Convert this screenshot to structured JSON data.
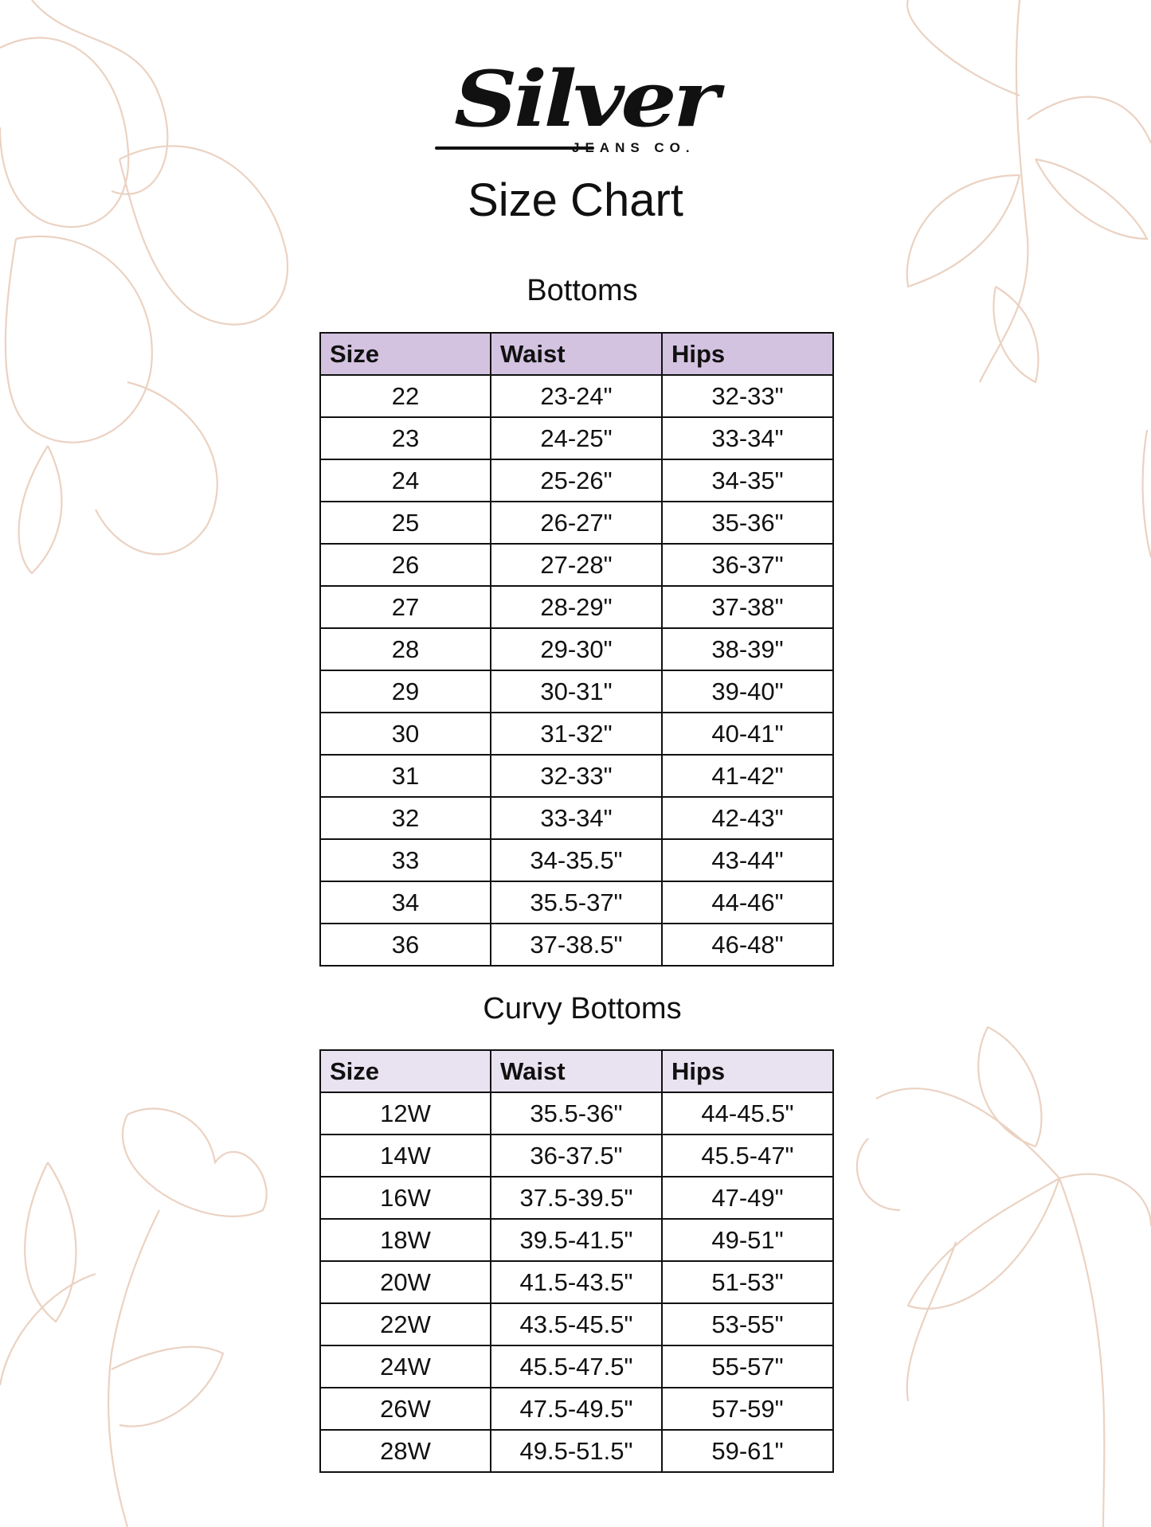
{
  "brand": {
    "logo_script": "Silver",
    "logo_sub": "JEANS CO."
  },
  "title": "Size Chart",
  "colors": {
    "header_bottoms": "#d3c3e0",
    "header_curvy": "#e9e2f0",
    "floral": "#ebd2c2"
  },
  "bottoms": {
    "heading": "Bottoms",
    "columns": [
      "Size",
      "Waist",
      "Hips"
    ],
    "rows": [
      [
        "22",
        "23-24\"",
        "32-33\""
      ],
      [
        "23",
        "24-25\"",
        "33-34\""
      ],
      [
        "24",
        "25-26\"",
        "34-35\""
      ],
      [
        "25",
        "26-27\"",
        "35-36\""
      ],
      [
        "26",
        "27-28\"",
        "36-37\""
      ],
      [
        "27",
        "28-29\"",
        "37-38\""
      ],
      [
        "28",
        "29-30\"",
        "38-39\""
      ],
      [
        "29",
        "30-31\"",
        "39-40\""
      ],
      [
        "30",
        "31-32\"",
        "40-41\""
      ],
      [
        "31",
        "32-33\"",
        "41-42\""
      ],
      [
        "32",
        "33-34\"",
        "42-43\""
      ],
      [
        "33",
        "34-35.5\"",
        "43-44\""
      ],
      [
        "34",
        "35.5-37\"",
        "44-46\""
      ],
      [
        "36",
        "37-38.5\"",
        "46-48\""
      ]
    ]
  },
  "curvy": {
    "heading": "Curvy Bottoms",
    "columns": [
      "Size",
      "Waist",
      "Hips"
    ],
    "rows": [
      [
        "12W",
        "35.5-36\"",
        "44-45.5\""
      ],
      [
        "14W",
        "36-37.5\"",
        "45.5-47\""
      ],
      [
        "16W",
        "37.5-39.5\"",
        "47-49\""
      ],
      [
        "18W",
        "39.5-41.5\"",
        "49-51\""
      ],
      [
        "20W",
        "41.5-43.5\"",
        "51-53\""
      ],
      [
        "22W",
        "43.5-45.5\"",
        "53-55\""
      ],
      [
        "24W",
        "45.5-47.5\"",
        "55-57\""
      ],
      [
        "26W",
        "47.5-49.5\"",
        "57-59\""
      ],
      [
        "28W",
        "49.5-51.5\"",
        "59-61\""
      ]
    ]
  }
}
